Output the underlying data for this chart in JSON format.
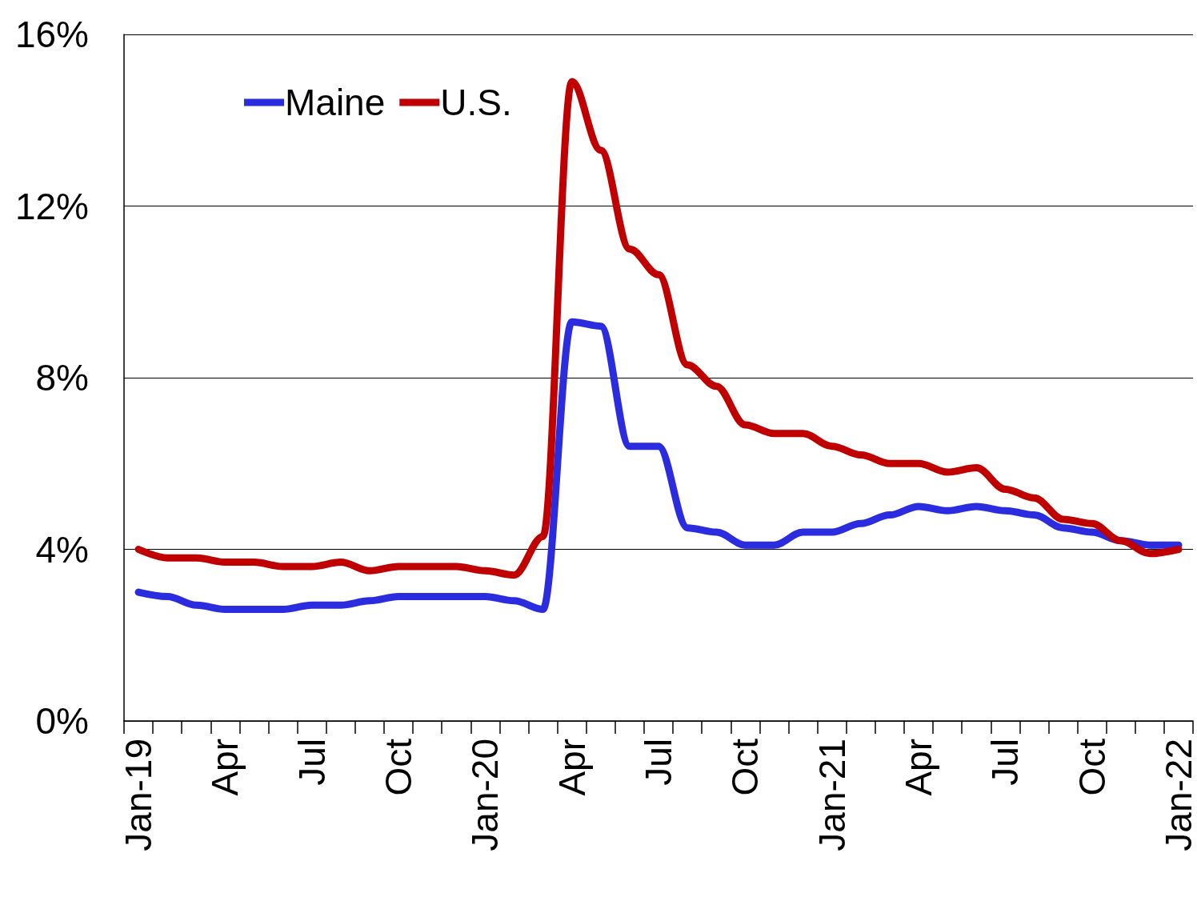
{
  "chart_data": {
    "type": "line",
    "categories": [
      "Jan-19",
      null,
      null,
      "Apr",
      null,
      null,
      "Jul",
      null,
      null,
      "Oct",
      null,
      null,
      "Jan-20",
      null,
      null,
      "Apr",
      null,
      null,
      "Jul",
      null,
      null,
      "Oct",
      null,
      null,
      "Jan-21",
      null,
      null,
      "Apr",
      null,
      null,
      "Jul",
      null,
      null,
      "Oct",
      null,
      null,
      "Jan-22"
    ],
    "series": [
      {
        "name": "Maine",
        "color": "#2b2be0",
        "values": [
          3.0,
          2.9,
          2.7,
          2.6,
          2.6,
          2.6,
          2.7,
          2.7,
          2.8,
          2.9,
          2.9,
          2.9,
          2.9,
          2.8,
          2.6,
          9.3,
          9.2,
          6.4,
          6.4,
          4.5,
          4.4,
          4.1,
          4.1,
          4.4,
          4.4,
          4.6,
          4.8,
          5.0,
          4.9,
          5.0,
          4.9,
          4.8,
          4.5,
          4.4,
          4.2,
          4.1,
          4.1
        ]
      },
      {
        "name": "U.S.",
        "color": "#c00000",
        "values": [
          4.0,
          3.8,
          3.8,
          3.7,
          3.7,
          3.6,
          3.6,
          3.7,
          3.5,
          3.6,
          3.6,
          3.6,
          3.5,
          3.4,
          4.3,
          14.9,
          13.3,
          11.0,
          10.4,
          8.3,
          7.8,
          6.9,
          6.7,
          6.7,
          6.4,
          6.2,
          6.0,
          6.0,
          5.8,
          5.9,
          5.4,
          5.2,
          4.7,
          4.6,
          4.2,
          3.9,
          4.0
        ]
      }
    ],
    "ylim": [
      0,
      16
    ],
    "yticks": [
      {
        "value": 0,
        "label": "0%"
      },
      {
        "value": 4,
        "label": "4%"
      },
      {
        "value": 8,
        "label": "8%"
      },
      {
        "value": 12,
        "label": "12%"
      },
      {
        "value": 16,
        "label": "16%"
      }
    ],
    "grid": "y",
    "legend": "top left",
    "marker": "none",
    "line_style": "solid"
  }
}
